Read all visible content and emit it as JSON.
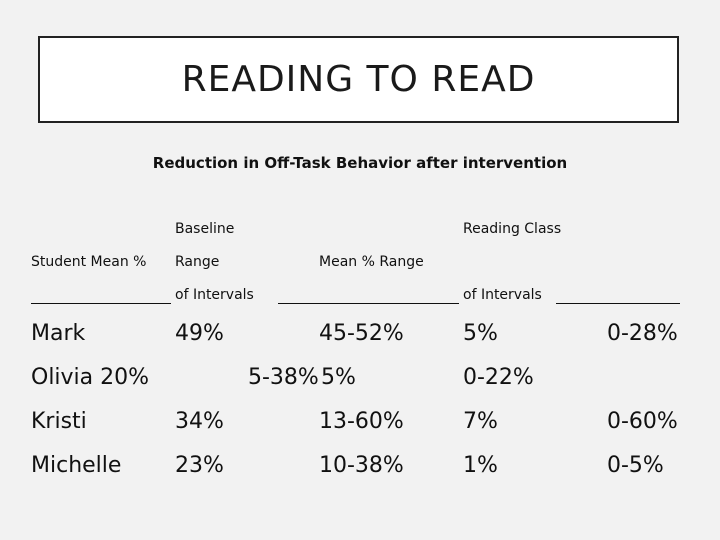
{
  "slide": {
    "title": "READING TO READ",
    "subtitle": "Reduction in Off-Task Behavior after intervention"
  },
  "table": {
    "header": {
      "baseline_label": "Baseline",
      "reading_class_label": "Reading Class",
      "student_mean_label": "Student  Mean %",
      "range_label": "Range",
      "mean_range_label": "Mean %  Range",
      "of_intervals_1": "of Intervals",
      "of_intervals_2": "of Intervals"
    },
    "rows": [
      {
        "student": "Mark",
        "baseline_mean": "49%",
        "baseline_range": "45-52%",
        "reading_mean": "5%",
        "reading_range": "0-28%"
      },
      {
        "student_and_mean": "Olivia 20%",
        "baseline_range": "5-38%",
        "reading_mean": "5%",
        "reading_range": "0-22%"
      },
      {
        "student": "Kristi",
        "baseline_mean": "34%",
        "baseline_range": "13-60%",
        "reading_mean": "7%",
        "reading_range": "0-60%"
      },
      {
        "student": "Michelle",
        "baseline_mean": "23%",
        "baseline_range": "10-38%",
        "reading_mean": "1%",
        "reading_range": "0-5%"
      }
    ]
  }
}
